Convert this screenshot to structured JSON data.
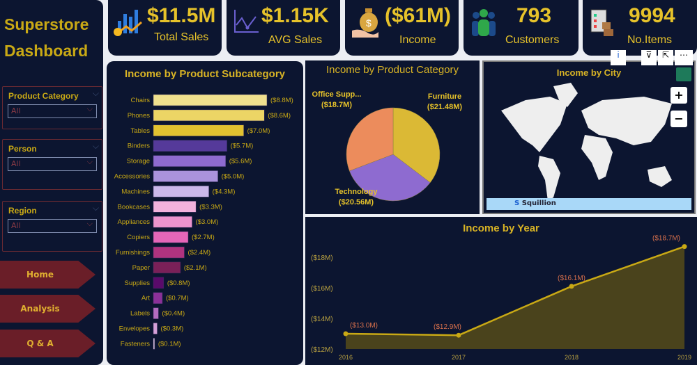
{
  "sidebar": {
    "title_line1": "Superstore",
    "title_line2": "Dashboard",
    "slicers": [
      {
        "label": "Product Category",
        "value": "All"
      },
      {
        "label": "Person",
        "value": "All"
      },
      {
        "label": "Region",
        "value": "All"
      }
    ],
    "nav": [
      "Home",
      "Analysis",
      "Q & A"
    ]
  },
  "kpis": [
    {
      "value": "$11.5M",
      "label": "Total Sales",
      "icon": "bar-chart-coin-icon"
    },
    {
      "value": "$1.15K",
      "label": "AVG Sales",
      "icon": "line-chart-icon"
    },
    {
      "value": "($61M)",
      "label": "Income",
      "icon": "money-bag-hand-icon"
    },
    {
      "value": "793",
      "label": "Customers",
      "icon": "people-icon"
    },
    {
      "value": "9994",
      "label": "No.Items",
      "icon": "clipboard-boxes-icon"
    }
  ],
  "visual_header": {
    "icons": [
      "info-icon",
      "filter-icon",
      "focus-mode-icon",
      "more-options-icon"
    ]
  },
  "map": {
    "title": "Income by City",
    "zoom_in": "+",
    "zoom_out": "−",
    "attribution": "Squillion"
  },
  "chart_data": [
    {
      "type": "bar",
      "orientation": "horizontal",
      "title": "Income by Product Subcategory",
      "categories": [
        "Chairs",
        "Phones",
        "Tables",
        "Binders",
        "Storage",
        "Accessories",
        "Machines",
        "Bookcases",
        "Appliances",
        "Copiers",
        "Furnishings",
        "Paper",
        "Supplies",
        "Art",
        "Labels",
        "Envelopes",
        "Fasteners"
      ],
      "values": [
        8.8,
        8.6,
        7.0,
        5.7,
        5.6,
        5.0,
        4.3,
        3.3,
        3.0,
        2.7,
        2.4,
        2.1,
        0.8,
        0.7,
        0.4,
        0.3,
        0.1
      ],
      "data_labels": [
        "($8.8M)",
        "($8.6M)",
        "($7.0M)",
        "($5.7M)",
        "($5.6M)",
        "($5.0M)",
        "($4.3M)",
        "($3.3M)",
        "($3.0M)",
        "($2.7M)",
        "($2.4M)",
        "($2.1M)",
        "($0.8M)",
        "($0.7M)",
        "($0.4M)",
        "($0.3M)",
        "($0.1M)"
      ],
      "colors": [
        "#f0e08e",
        "#ecd565",
        "#e2c230",
        "#553a9a",
        "#8e6bcf",
        "#ab93dc",
        "#cbb8ea",
        "#f2b2dc",
        "#ec94cd",
        "#e466b8",
        "#b0337f",
        "#7a2058",
        "#5a0a6a",
        "#8b3099",
        "#b36cc0",
        "#d5a0d8",
        "#f0d8f0"
      ]
    },
    {
      "type": "pie",
      "title": "Income by Product Category",
      "categories": [
        "Furniture",
        "Technology",
        "Office Supp..."
      ],
      "values": [
        21.48,
        20.56,
        18.7
      ],
      "data_labels": [
        "($21.48M)",
        "($20.56M)",
        "($18.7M)"
      ],
      "colors": [
        "#dbb935",
        "#8e6bd0",
        "#ec8c5c"
      ]
    },
    {
      "type": "area",
      "title": "Income by Year",
      "x": [
        "2016",
        "2017",
        "2018",
        "2019"
      ],
      "values": [
        13.0,
        12.9,
        16.1,
        18.7
      ],
      "data_labels": [
        "($13.0M)",
        "($12.9M)",
        "($16.1M)",
        "($18.7M)"
      ],
      "yticks": [
        "($12M)",
        "($14M)",
        "($16M)",
        "($18M)"
      ],
      "ylim": [
        12,
        18.7
      ],
      "grid": false,
      "color": "#c9a915",
      "label_color": "#d8704c"
    }
  ]
}
